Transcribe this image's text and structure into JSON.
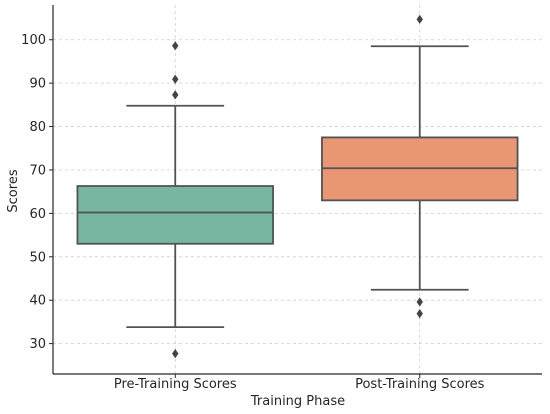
{
  "chart_data": {
    "type": "box",
    "title": "",
    "xlabel": "Training Phase",
    "ylabel": "Scores",
    "ylim": [
      23,
      108
    ],
    "yticks": [
      30,
      40,
      50,
      60,
      70,
      80,
      90,
      100
    ],
    "grid": true,
    "categories": [
      "Pre-Training Scores",
      "Post-Training Scores"
    ],
    "boxes": [
      {
        "category": "Pre-Training Scores",
        "whisker_low": 33.8,
        "q1": 53.0,
        "median": 60.2,
        "q3": 66.3,
        "whisker_high": 84.8,
        "outliers": [
          27.7,
          87.3,
          90.9,
          98.6
        ],
        "color": "#79b6a2"
      },
      {
        "category": "Post-Training Scores",
        "whisker_low": 42.4,
        "q1": 63.0,
        "median": 70.4,
        "q3": 77.5,
        "whisker_high": 98.5,
        "outliers": [
          36.9,
          39.6,
          104.7
        ],
        "color": "#e99674"
      }
    ]
  }
}
